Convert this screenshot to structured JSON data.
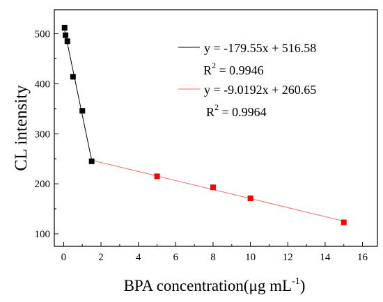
{
  "chart_data": {
    "type": "scatter",
    "xlabel": "BPA concentration(μg mL",
    "xlabel_superscript": "-1",
    "xlabel_suffix": ")",
    "ylabel": "CL intensity",
    "xlim": [
      -0.5,
      16.8
    ],
    "ylim": [
      75,
      548
    ],
    "xticks": [
      0,
      2,
      4,
      6,
      8,
      10,
      12,
      14,
      16
    ],
    "yticks": [
      100,
      200,
      300,
      400,
      500
    ],
    "xtick_labels": [
      "0",
      "2",
      "4",
      "6",
      "8",
      "10",
      "12",
      "14",
      "16"
    ],
    "ytick_labels": [
      "100",
      "200",
      "300",
      "400",
      "500"
    ],
    "grid": false,
    "legend_position": "top-right",
    "series": [
      {
        "color": "#000000",
        "marker": "square",
        "points": [
          {
            "x": 0.05,
            "y": 512
          },
          {
            "x": 0.1,
            "y": 497
          },
          {
            "x": 0.2,
            "y": 485
          },
          {
            "x": 0.5,
            "y": 414
          },
          {
            "x": 1.0,
            "y": 346
          },
          {
            "x": 1.5,
            "y": 245
          }
        ],
        "fit": {
          "slope": -179.55,
          "intercept": 516.58,
          "x_range": [
            0.05,
            1.5
          ]
        },
        "equation": "y = -179.55x + 516.58",
        "r2_label": "R",
        "r2_exp": "2",
        "r2_value": " = 0.9946"
      },
      {
        "color": "#ff0000",
        "line_color": "#ff6666",
        "marker": "square",
        "points": [
          {
            "x": 5,
            "y": 215
          },
          {
            "x": 8,
            "y": 193
          },
          {
            "x": 10,
            "y": 171
          },
          {
            "x": 15,
            "y": 123
          }
        ],
        "fit": {
          "slope": -9.0192,
          "intercept": 260.65,
          "x_range": [
            1.5,
            15
          ]
        },
        "equation": "y = -9.0192x + 260.65",
        "r2_label": "R",
        "r2_exp": "2",
        "r2_value": " = 0.9964"
      }
    ]
  }
}
